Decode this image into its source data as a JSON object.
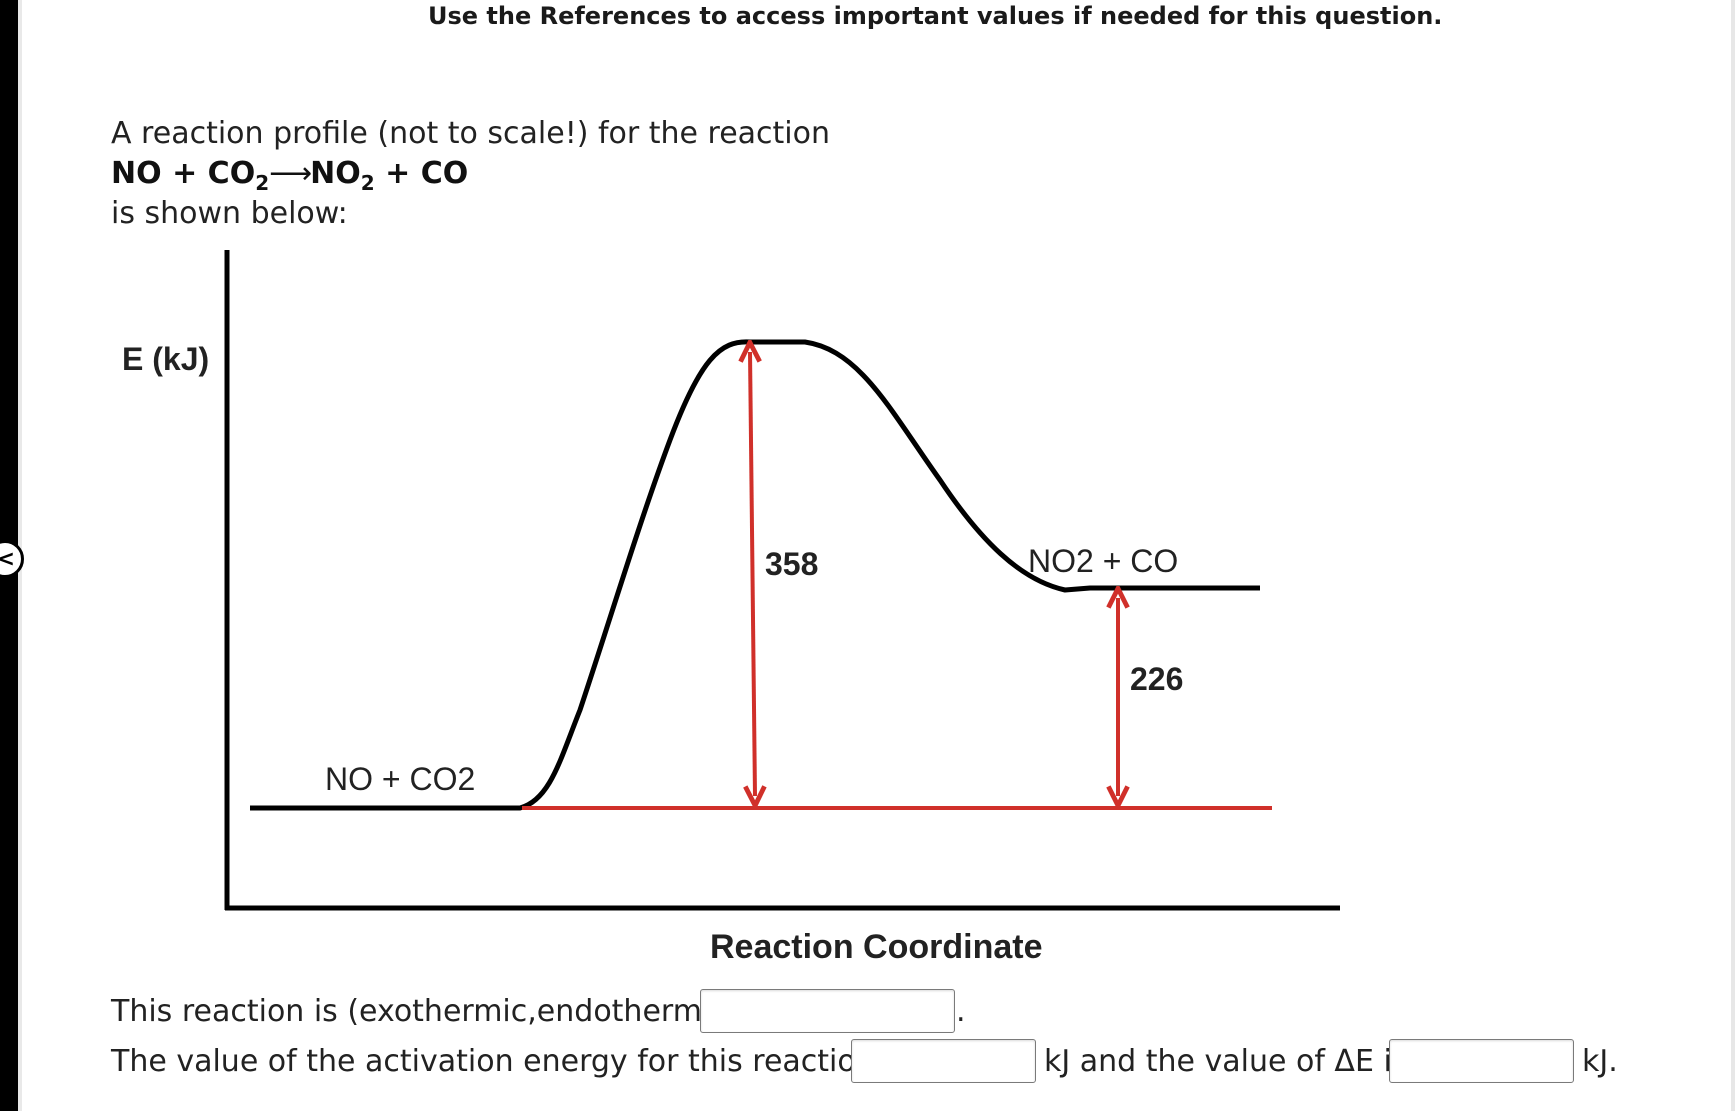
{
  "reference_note": "Use the References to access important values if needed for this question.",
  "prompt": {
    "intro": "A reaction profile (not to scale!) for the reaction",
    "equation": {
      "reactant_1": "NO",
      "plus_1": "+",
      "reactant_2": "CO",
      "reactant_2_sub": "2",
      "arrow": "⟶",
      "product_1": "NO",
      "product_1_sub": "2",
      "plus_2": "+",
      "product_2": "CO"
    },
    "shown": "is shown below:"
  },
  "diagram": {
    "y_axis_label": "E (kJ)",
    "x_axis_label": "Reaction Coordinate",
    "reactant_label": "NO + CO2",
    "product_label": "NO2 + CO",
    "activation_energy_label": "358",
    "delta_e_label": "226",
    "colors": {
      "curve": "#000000",
      "arrows": "#d0302a"
    }
  },
  "questions": {
    "q1_text": "This reaction is (exothermic,endothermic)",
    "q1_after": ".",
    "q2_text": "The value of the activation energy for this reaction is",
    "q2_middle": "kJ and the value of ΔE is",
    "q2_end": "kJ.",
    "answer_1_value": "",
    "answer_2_value": "",
    "answer_3_value": ""
  }
}
